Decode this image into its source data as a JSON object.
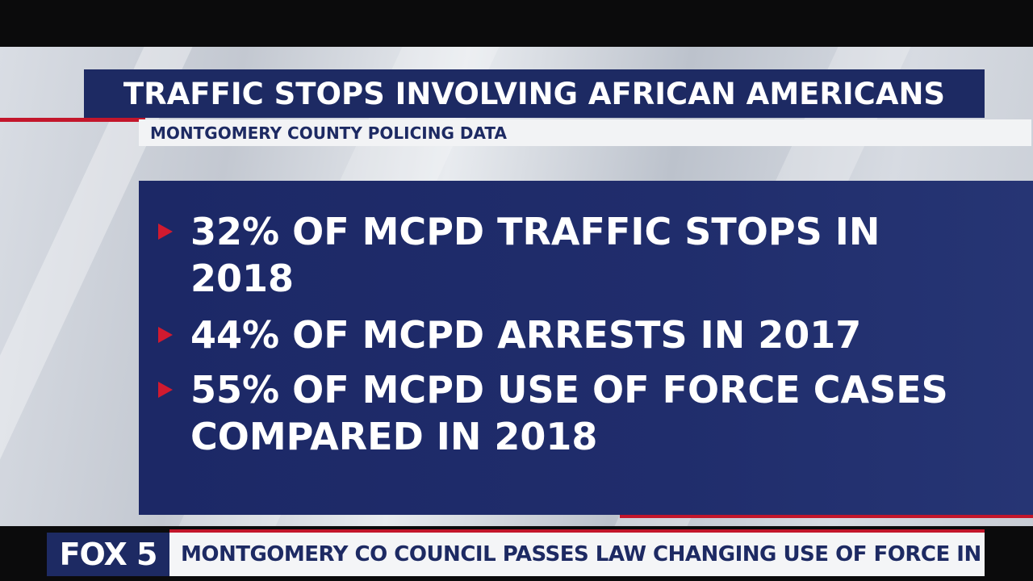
{
  "colors": {
    "navy": "#1d2a63",
    "red": "#c3162b",
    "white": "#ffffff"
  },
  "graphic": {
    "title": "TRAFFIC STOPS INVOLVING AFRICAN AMERICANS",
    "subtitle": "MONTGOMERY COUNTY POLICING DATA",
    "bullets": [
      {
        "icon": "triangle-bullet-icon",
        "text": "32% OF MCPD TRAFFIC STOPS IN 2018"
      },
      {
        "icon": "triangle-bullet-icon",
        "text": "44% OF MCPD ARRESTS IN 2017"
      },
      {
        "icon": "triangle-bullet-icon",
        "text": "55% OF MCPD USE OF FORCE CASES COMPARED IN 2018"
      }
    ]
  },
  "lower_third": {
    "logo": "FOX 5",
    "headline": "MONTGOMERY CO COUNCIL PASSES LAW CHANGING USE OF FORCE IN POLICING"
  }
}
